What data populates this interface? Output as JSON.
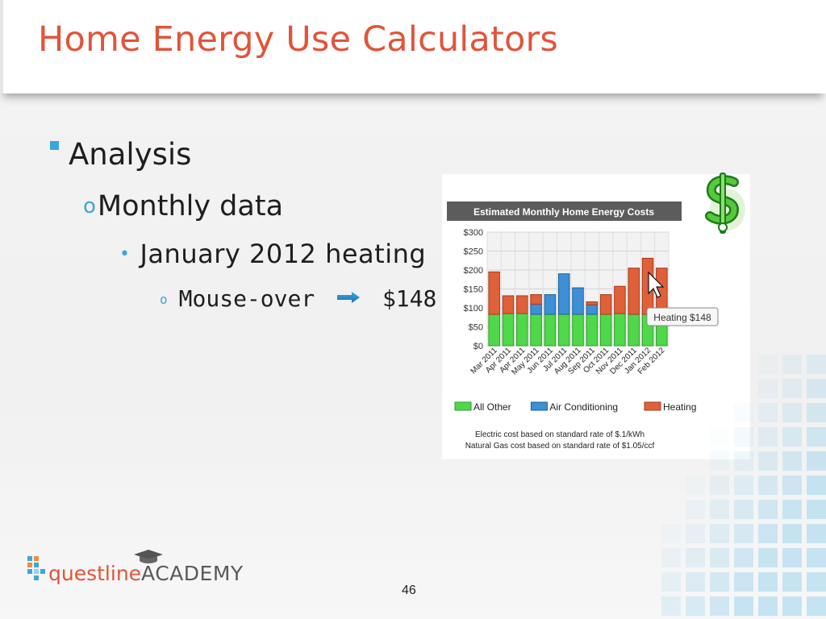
{
  "slide": {
    "title": "Home Energy Use Calculators",
    "page_number": "46"
  },
  "bullets": {
    "level1": "Analysis",
    "level2": "Monthly data",
    "level3": "January 2012 heating",
    "level4_left": "Mouse-over",
    "level4_right": "$148"
  },
  "logo": {
    "brand": "questline",
    "academy": "ACADEMY"
  },
  "colors": {
    "title": "#e0553a",
    "accent": "#3aa7dc",
    "all_other": "#4fd84a",
    "air_conditioning": "#3d8fd6",
    "heating": "#e0603a"
  },
  "icons": {
    "dollar": "dollar-sign-icon",
    "arrow": "right-arrow-icon",
    "cursor": "mouse-pointer-icon",
    "graduation_cap": "graduation-cap-icon"
  },
  "chart_data": {
    "type": "bar",
    "stacked": true,
    "title": "Estimated Monthly Home Energy Costs",
    "categories": [
      "Mar 2011",
      "Apr 2011",
      "Apr 2011",
      "May 2011",
      "Jun 2011",
      "Jul 2011",
      "Aug 2011",
      "Sep 2011",
      "Oct 2011",
      "Nov 2011",
      "Dec 2011",
      "Jan 2012",
      "Feb 2012"
    ],
    "series": [
      {
        "name": "All Other",
        "color": "#4fd84a",
        "values": [
          83,
          85,
          85,
          83,
          83,
          83,
          83,
          83,
          83,
          85,
          83,
          83,
          83
        ]
      },
      {
        "name": "Air Conditioning",
        "color": "#3d8fd6",
        "values": [
          0,
          0,
          0,
          27,
          52,
          107,
          70,
          25,
          0,
          0,
          0,
          0,
          0
        ]
      },
      {
        "name": "Heating",
        "color": "#e0603a",
        "values": [
          112,
          47,
          47,
          25,
          0,
          0,
          0,
          8,
          52,
          72,
          122,
          148,
          122
        ]
      }
    ],
    "ylim": [
      0,
      300
    ],
    "yticks": [
      "$0",
      "$50",
      "$100",
      "$150",
      "$200",
      "$250",
      "$300"
    ],
    "grid": true,
    "legend": "bottom",
    "tooltip": "Heating $148",
    "footnotes": [
      "Electric cost based on standard rate of $.1/kWh",
      "Natural Gas cost based on standard rate of $1.05/ccf"
    ]
  }
}
